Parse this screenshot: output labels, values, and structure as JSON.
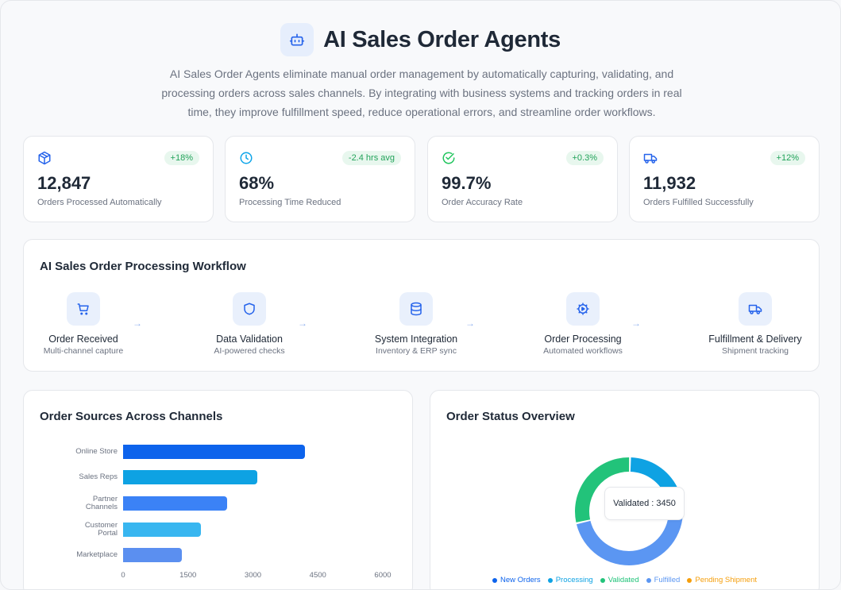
{
  "header": {
    "title": "AI Sales Order Agents",
    "icon": "robot-icon",
    "description": "AI Sales Order Agents eliminate manual order management by automatically capturing, validating, and processing orders across sales channels. By integrating with business systems and tracking orders in real time, they improve fulfillment speed, reduce operational errors, and streamline order workflows."
  },
  "stats": [
    {
      "icon": "package-icon",
      "value": "12,847",
      "label": "Orders Processed Automatically",
      "badge": "+18%",
      "icon_color": "#2563eb"
    },
    {
      "icon": "clock-icon",
      "value": "68%",
      "label": "Processing Time Reduced",
      "badge": "-2.4 hrs avg",
      "icon_color": "#0ea5e9"
    },
    {
      "icon": "check-circle-icon",
      "value": "99.7%",
      "label": "Order Accuracy Rate",
      "badge": "+0.3%",
      "icon_color": "#22c55e"
    },
    {
      "icon": "truck-icon",
      "value": "11,932",
      "label": "Orders Fulfilled Successfully",
      "badge": "+12%",
      "icon_color": "#2563eb"
    }
  ],
  "workflow": {
    "title": "AI Sales Order Processing Workflow",
    "arrow": "→",
    "steps": [
      {
        "icon": "cart-icon",
        "name": "Order Received",
        "sub": "Multi-channel capture"
      },
      {
        "icon": "shield-icon",
        "name": "Data Validation",
        "sub": "AI-powered checks"
      },
      {
        "icon": "database-icon",
        "name": "System Integration",
        "sub": "Inventory & ERP sync"
      },
      {
        "icon": "gear-play-icon",
        "name": "Order Processing",
        "sub": "Automated workflows"
      },
      {
        "icon": "truck-icon",
        "name": "Fulfillment & Delivery",
        "sub": "Shipment tracking"
      }
    ]
  },
  "colors": {
    "accent": "#2563eb",
    "badge_bg": "#e8f7ee",
    "badge_text": "#22a35a"
  },
  "chart_data": [
    {
      "type": "bar",
      "orientation": "horizontal",
      "title": "Order Sources Across Channels",
      "categories": [
        "Online Store",
        "Sales Reps",
        "Partner Channels",
        "Customer Portal",
        "Marketplace"
      ],
      "category_lines": [
        [
          "Online Store"
        ],
        [
          "Sales Reps"
        ],
        [
          "Partner",
          "Channels"
        ],
        [
          "Customer",
          "Portal"
        ],
        [
          "Marketplace"
        ]
      ],
      "values": [
        4200,
        3100,
        2400,
        1800,
        1350
      ],
      "colors": [
        "#0d63ec",
        "#0ea2e3",
        "#3b82f6",
        "#38b6f0",
        "#5b8ff0"
      ],
      "xticks": [
        "0",
        "1500",
        "3000",
        "4500",
        "6000"
      ],
      "xlim": [
        0,
        6000
      ],
      "xlabel": "",
      "ylabel": "",
      "grid": false
    },
    {
      "type": "pie",
      "donut": true,
      "title": "Order Status Overview",
      "labels": [
        "New Orders",
        "Processing",
        "Validated",
        "Fulfilled",
        "Pending Shipment"
      ],
      "values": [
        350,
        2100,
        3450,
        5500,
        550
      ],
      "colors": [
        "#0d63ec",
        "#0ea2e3",
        "#22c37a",
        "#5b96f2",
        "#f59e0b"
      ],
      "legend_position": "bottom",
      "tooltip": {
        "label": "Validated",
        "value": "3450",
        "text": "Validated : 3450"
      }
    }
  ]
}
